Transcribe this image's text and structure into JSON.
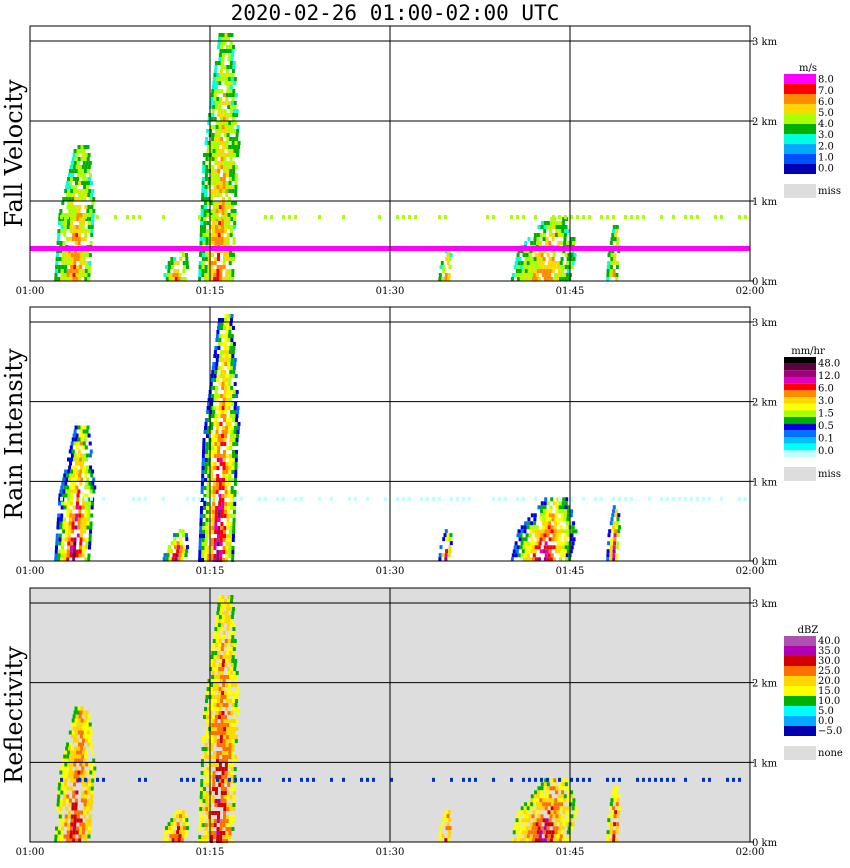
{
  "title": "2020-02-26   01:00-02:00 UTC",
  "x_ticks": [
    "01:00",
    "01:15",
    "01:30",
    "01:45",
    "02:00"
  ],
  "y_ticks": [
    "0 km",
    "1 km",
    "2 km",
    "3 km"
  ],
  "panels": [
    {
      "ylabel": "Fall Velocity",
      "unit": "m/s",
      "legend": [
        "8.0",
        "7.0",
        "6.0",
        "5.0",
        "4.0",
        "3.0",
        "2.0",
        "1.0",
        "0.0"
      ],
      "legend_colors": [
        "#ff00ff",
        "#ff0000",
        "#ff8c00",
        "#ffd700",
        "#aaff00",
        "#00b000",
        "#00ffdd",
        "#00aaff",
        "#0050ff",
        "#0000b0"
      ],
      "missing_label": "miss",
      "missing_color": "#dddddd",
      "background": "#ffffff"
    },
    {
      "ylabel": "Rain Intensity",
      "unit": "mm/hr",
      "legend": [
        "48.0",
        "12.0",
        "6.0",
        "3.0",
        "1.5",
        "0.5",
        "0.1",
        "0.0"
      ],
      "legend_colors": [
        "#000000",
        "#5a0040",
        "#a0007a",
        "#e000c0",
        "#ff0000",
        "#ff8c00",
        "#ffd700",
        "#ffff00",
        "#aaff00",
        "#00b000",
        "#0000e0",
        "#0070ff",
        "#00c0ff",
        "#00ffff",
        "#bfffff"
      ],
      "missing_label": "miss",
      "missing_color": "#dddddd",
      "background": "#ffffff"
    },
    {
      "ylabel": "Reflectivity",
      "unit": "dBZ",
      "legend": [
        "40.0",
        "35.0",
        "30.0",
        "25.0",
        "20.0",
        "15.0",
        "10.0",
        "5.0",
        "0.0",
        "−5.0"
      ],
      "legend_colors": [
        "#b050b0",
        "#b000b0",
        "#d00000",
        "#ff7000",
        "#ffd700",
        "#ffff00",
        "#00b000",
        "#00ffff",
        "#00aaff",
        "#0000b0"
      ],
      "missing_label": "none",
      "missing_color": "#dddddd",
      "background": "#dddddd"
    }
  ],
  "chart_data": [
    {
      "type": "heatmap",
      "title": "2020-02-26   01:00-02:00 UTC",
      "ylabel": "Fall Velocity",
      "colorbar_label": "m/s",
      "x_range": [
        "01:00",
        "02:00"
      ],
      "y_range_km": [
        0,
        3.2
      ],
      "grid": true,
      "events": [
        {
          "start": "01:02",
          "end": "01:05",
          "top_km": 1.7
        },
        {
          "start": "01:11",
          "end": "01:13",
          "top_km": 0.4
        },
        {
          "start": "01:14",
          "end": "01:17",
          "top_km": 3.1
        },
        {
          "start": "01:34",
          "end": "01:35",
          "top_km": 0.4
        },
        {
          "start": "01:40",
          "end": "01:45",
          "top_km": 0.8
        },
        {
          "start": "01:48",
          "end": "01:49",
          "top_km": 0.7
        }
      ]
    },
    {
      "type": "heatmap",
      "title": "2020-02-26   01:00-02:00 UTC",
      "ylabel": "Rain Intensity",
      "colorbar_label": "mm/hr",
      "x_range": [
        "01:00",
        "02:00"
      ],
      "y_range_km": [
        0,
        3.2
      ],
      "grid": true,
      "events": [
        {
          "start": "01:02",
          "end": "01:05",
          "top_km": 1.7
        },
        {
          "start": "01:11",
          "end": "01:13",
          "top_km": 0.4
        },
        {
          "start": "01:14",
          "end": "01:17",
          "top_km": 3.1
        },
        {
          "start": "01:34",
          "end": "01:35",
          "top_km": 0.4
        },
        {
          "start": "01:40",
          "end": "01:45",
          "top_km": 0.8
        },
        {
          "start": "01:48",
          "end": "01:49",
          "top_km": 0.7
        }
      ]
    },
    {
      "type": "heatmap",
      "title": "2020-02-26   01:00-02:00 UTC",
      "ylabel": "Reflectivity",
      "colorbar_label": "dBZ",
      "x_range": [
        "01:00",
        "02:00"
      ],
      "y_range_km": [
        0,
        3.2
      ],
      "grid": true,
      "events": [
        {
          "start": "01:02",
          "end": "01:05",
          "top_km": 1.7
        },
        {
          "start": "01:11",
          "end": "01:13",
          "top_km": 0.4
        },
        {
          "start": "01:14",
          "end": "01:17",
          "top_km": 3.1
        },
        {
          "start": "01:34",
          "end": "01:35",
          "top_km": 0.4
        },
        {
          "start": "01:40",
          "end": "01:45",
          "top_km": 0.8
        },
        {
          "start": "01:48",
          "end": "01:49",
          "top_km": 0.7
        }
      ]
    }
  ]
}
